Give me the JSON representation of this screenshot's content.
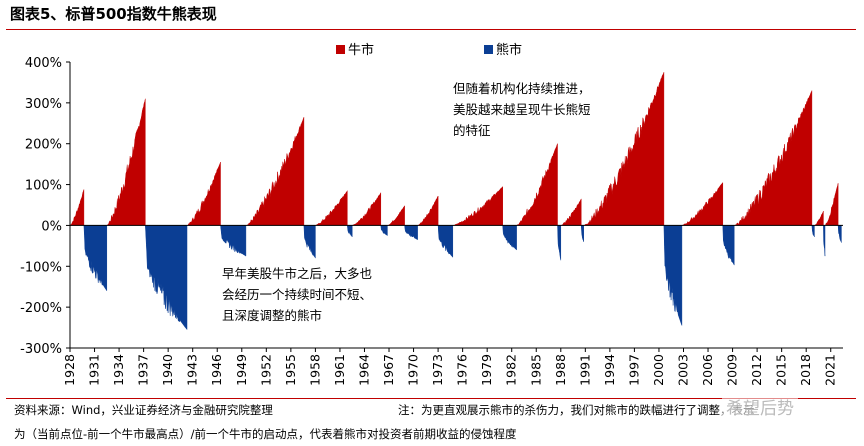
{
  "header": {
    "title": "图表5、标普500指数牛熊表现"
  },
  "chart_data": {
    "type": "area",
    "title": "",
    "xlabel": "",
    "ylabel": "",
    "ylim": [
      -300,
      400
    ],
    "ytick_labels": [
      "400%",
      "300%",
      "200%",
      "100%",
      "0%",
      "-100%",
      "-200%",
      "-300%"
    ],
    "ytick_values": [
      400,
      300,
      200,
      100,
      0,
      -100,
      -200,
      -300
    ],
    "xtick_labels": [
      "1928",
      "1931",
      "1934",
      "1937",
      "1940",
      "1943",
      "1946",
      "1949",
      "1952",
      "1955",
      "1958",
      "1961",
      "1964",
      "1967",
      "1970",
      "1973",
      "1976",
      "1979",
      "1982",
      "1985",
      "1988",
      "1991",
      "1994",
      "1997",
      "2000",
      "2003",
      "2006",
      "2009",
      "2012",
      "2015",
      "2018",
      "2021"
    ],
    "xlim": [
      1928,
      2022.5
    ],
    "legend_position": "top",
    "grid": false,
    "series": [
      {
        "name": "牛市",
        "color": "#c00000",
        "episodes": [
          {
            "start": 1928.0,
            "end": 1929.7,
            "peak": 88
          },
          {
            "start": 1932.5,
            "end": 1937.2,
            "peak": 310
          },
          {
            "start": 1942.3,
            "end": 1946.4,
            "peak": 155
          },
          {
            "start": 1949.5,
            "end": 1956.6,
            "peak": 265
          },
          {
            "start": 1958.0,
            "end": 1961.9,
            "peak": 85
          },
          {
            "start": 1962.5,
            "end": 1966.0,
            "peak": 80
          },
          {
            "start": 1966.8,
            "end": 1968.9,
            "peak": 48
          },
          {
            "start": 1970.5,
            "end": 1973.0,
            "peak": 72
          },
          {
            "start": 1974.8,
            "end": 1980.9,
            "peak": 95
          },
          {
            "start": 1982.6,
            "end": 1987.6,
            "peak": 200
          },
          {
            "start": 1988.0,
            "end": 1990.5,
            "peak": 65
          },
          {
            "start": 1990.8,
            "end": 2000.6,
            "peak": 375
          },
          {
            "start": 2002.8,
            "end": 2007.8,
            "peak": 105
          },
          {
            "start": 2009.2,
            "end": 2018.7,
            "peak": 330
          },
          {
            "start": 2019.0,
            "end": 2020.1,
            "peak": 35
          },
          {
            "start": 2020.3,
            "end": 2021.9,
            "peak": 103
          }
        ]
      },
      {
        "name": "熊市",
        "color": "#0b3e94",
        "episodes": [
          {
            "start": 1929.7,
            "end": 1932.5,
            "trough": -160
          },
          {
            "start": 1937.2,
            "end": 1942.3,
            "trough": -255
          },
          {
            "start": 1946.4,
            "end": 1949.5,
            "trough": -75
          },
          {
            "start": 1956.6,
            "end": 1958.0,
            "trough": -80
          },
          {
            "start": 1961.9,
            "end": 1962.5,
            "trough": -28
          },
          {
            "start": 1966.0,
            "end": 1966.8,
            "trough": -25
          },
          {
            "start": 1968.9,
            "end": 1970.5,
            "trough": -35
          },
          {
            "start": 1973.0,
            "end": 1974.8,
            "trough": -78
          },
          {
            "start": 1980.9,
            "end": 1982.6,
            "trough": -60
          },
          {
            "start": 1987.6,
            "end": 1988.0,
            "trough": -85
          },
          {
            "start": 1990.5,
            "end": 1990.8,
            "trough": -40
          },
          {
            "start": 2000.6,
            "end": 2002.8,
            "trough": -245
          },
          {
            "start": 2007.8,
            "end": 2009.2,
            "trough": -97
          },
          {
            "start": 2018.7,
            "end": 2019.0,
            "trough": -28
          },
          {
            "start": 2020.1,
            "end": 2020.3,
            "trough": -75
          },
          {
            "start": 2021.9,
            "end": 2022.3,
            "trough": -42
          }
        ]
      }
    ],
    "annotations": [
      {
        "id": "ann1",
        "lines": [
          "早年美股牛市之后，大多也",
          "会经历一个持续时间不短、",
          "且深度调整的熊市"
        ]
      },
      {
        "id": "ann2",
        "lines": [
          "但随着机构化持续推进，",
          "美股越来越呈现牛长熊短",
          "的特征"
        ]
      }
    ]
  },
  "footer": {
    "source": "资料来源：Wind，兴业证券经济与金融研究院整理",
    "note_line1": "注：为更直观展示熊市的杀伤力，我们对熊市的跌幅进行了调整，表示",
    "note_line2": "为（当前点位-前一个牛市最高点）/前一个牛市的启动点，代表着熊市对投资者前期收益的侵蚀程度",
    "watermark": "希望后势"
  }
}
